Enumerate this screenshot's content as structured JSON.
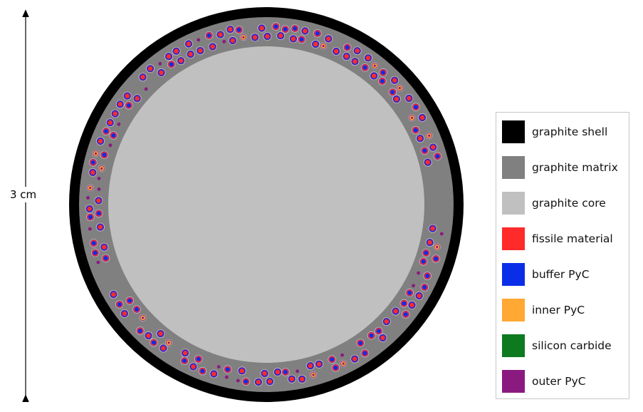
{
  "scale": {
    "label": "3 cm"
  },
  "legend": {
    "items": [
      {
        "label": "graphite shell",
        "color": "#000000",
        "name": "graphite-shell"
      },
      {
        "label": "graphite matrix",
        "color": "#808080",
        "name": "graphite-matrix"
      },
      {
        "label": "graphite core",
        "color": "#c0c0c0",
        "name": "graphite-core"
      },
      {
        "label": "fissile material",
        "color": "#ff2a2a",
        "name": "fissile-material"
      },
      {
        "label": "buffer PyC",
        "color": "#0a2ee8",
        "name": "buffer-pyc"
      },
      {
        "label": "inner PyC",
        "color": "#ffa833",
        "name": "inner-pyc"
      },
      {
        "label": "silicon carbide",
        "color": "#0e7a1f",
        "name": "silicon-carbide"
      },
      {
        "label": "outer PyC",
        "color": "#8a1a80",
        "name": "outer-pyc"
      }
    ]
  }
}
